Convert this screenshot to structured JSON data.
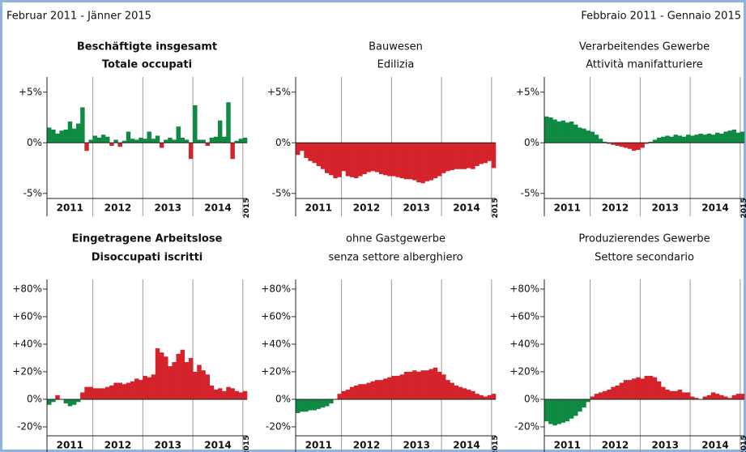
{
  "header": {
    "left": "Februar 2011 - Jänner 2015",
    "right": "Febbraio 2011 - Gennaio 2015"
  },
  "chart_data": [
    {
      "type": "bar",
      "title": [
        "Beschäftigte insgesamt",
        "Totale occupati"
      ],
      "title_bold": true,
      "groups": [
        "2011",
        "2012",
        "2013",
        "2014",
        "2015"
      ],
      "pos_color": "#0e8a43",
      "neg_color": "#d4232b",
      "ylim": [
        -5.5,
        6.5
      ],
      "yticks": [
        {
          "value": 5,
          "label": "+5%"
        },
        {
          "value": 0,
          "label": "0%"
        },
        {
          "value": -5,
          "label": "-5%"
        }
      ],
      "values": [
        1.5,
        1.3,
        0.9,
        1.2,
        1.3,
        2.1,
        1.4,
        1.9,
        3.5,
        -0.8,
        0.3,
        0.7,
        0.5,
        0.8,
        0.6,
        -0.3,
        0.3,
        -0.4,
        0.2,
        1.1,
        0.4,
        0.3,
        0.5,
        0.4,
        1.1,
        0.4,
        0.7,
        -0.5,
        0.3,
        0.5,
        0.3,
        1.6,
        0.5,
        0.3,
        -1.6,
        3.7,
        0.3,
        0.3,
        -0.3,
        0.5,
        0.6,
        2.2,
        0.6,
        4.0,
        -1.6,
        0.2,
        0.4,
        0.5
      ]
    },
    {
      "type": "bar",
      "title": [
        "Bauwesen",
        "Edilizia"
      ],
      "title_bold": false,
      "groups": [
        "2011",
        "2012",
        "2013",
        "2014",
        "2015"
      ],
      "pos_color": "#0e8a43",
      "neg_color": "#d4232b",
      "ylim": [
        -5.5,
        6.5
      ],
      "yticks": [
        {
          "value": 5,
          "label": "+5%"
        },
        {
          "value": 0,
          "label": "0%"
        },
        {
          "value": -5,
          "label": "-5%"
        }
      ],
      "values": [
        -1.2,
        -0.8,
        -1.5,
        -1.8,
        -2.0,
        -2.3,
        -2.6,
        -3.0,
        -3.2,
        -3.5,
        -3.4,
        -2.8,
        -3.3,
        -3.4,
        -3.5,
        -3.3,
        -3.1,
        -2.9,
        -2.8,
        -2.9,
        -3.1,
        -3.2,
        -3.3,
        -3.3,
        -3.4,
        -3.5,
        -3.6,
        -3.6,
        -3.7,
        -3.9,
        -4.0,
        -3.8,
        -3.7,
        -3.5,
        -3.3,
        -3.0,
        -2.8,
        -2.7,
        -2.6,
        -2.6,
        -2.6,
        -2.5,
        -2.6,
        -2.3,
        -2.1,
        -2.0,
        -1.8,
        -2.5
      ]
    },
    {
      "type": "bar",
      "title": [
        "Verarbeitendes Gewerbe",
        "Attività manifatturiere"
      ],
      "title_bold": false,
      "groups": [
        "2011",
        "2012",
        "2013",
        "2014",
        "2015"
      ],
      "pos_color": "#0e8a43",
      "neg_color": "#d4232b",
      "ylim": [
        -5.5,
        6.5
      ],
      "yticks": [
        {
          "value": 5,
          "label": "+5%"
        },
        {
          "value": 0,
          "label": "0%"
        },
        {
          "value": -5,
          "label": "-5%"
        }
      ],
      "values": [
        2.6,
        2.5,
        2.3,
        2.1,
        2.2,
        2.0,
        2.1,
        1.8,
        1.5,
        1.4,
        1.2,
        1.1,
        0.8,
        0.4,
        0.1,
        -0.1,
        -0.2,
        -0.3,
        -0.4,
        -0.5,
        -0.6,
        -0.8,
        -0.7,
        -0.5,
        -0.1,
        0.1,
        0.3,
        0.5,
        0.6,
        0.7,
        0.6,
        0.8,
        0.7,
        0.6,
        0.8,
        0.7,
        0.8,
        0.9,
        0.8,
        0.9,
        0.8,
        1.0,
        0.9,
        1.1,
        1.2,
        1.3,
        1.0,
        1.1
      ]
    },
    {
      "type": "bar",
      "title": [
        "Eingetragene Arbeitslose",
        "Disoccupati iscritti"
      ],
      "title_bold": true,
      "groups": [
        "2011",
        "2012",
        "2013",
        "2014",
        "2015"
      ],
      "pos_color": "#d4232b",
      "neg_color": "#0e8a43",
      "ylim": [
        -26.5,
        87
      ],
      "yticks": [
        {
          "value": 80,
          "label": "+80%"
        },
        {
          "value": 60,
          "label": "+60%"
        },
        {
          "value": 40,
          "label": "+40%"
        },
        {
          "value": 20,
          "label": "+20%"
        },
        {
          "value": 0,
          "label": "0%"
        },
        {
          "value": -20,
          "label": "-20%"
        }
      ],
      "values": [
        -4,
        -2,
        3,
        0,
        -3,
        -5,
        -4,
        -2,
        5,
        9,
        9,
        8,
        8,
        8,
        9,
        10,
        12,
        12,
        11,
        12,
        13,
        15,
        14,
        17,
        16,
        18,
        37,
        34,
        31,
        24,
        27,
        33,
        36,
        27,
        30,
        20,
        25,
        21,
        18,
        10,
        7,
        8,
        6,
        9,
        8,
        6,
        5,
        6
      ]
    },
    {
      "type": "bar",
      "title": [
        "ohne Gastgewerbe",
        "senza settore alberghiero"
      ],
      "title_bold": false,
      "groups": [
        "2011",
        "2012",
        "2013",
        "2014",
        "2015"
      ],
      "pos_color": "#d4232b",
      "neg_color": "#0e8a43",
      "ylim": [
        -26.5,
        87
      ],
      "yticks": [
        {
          "value": 80,
          "label": "+80%"
        },
        {
          "value": 60,
          "label": "+60%"
        },
        {
          "value": 40,
          "label": "+40%"
        },
        {
          "value": 20,
          "label": "+20%"
        },
        {
          "value": 0,
          "label": "0%"
        },
        {
          "value": -20,
          "label": "-20%"
        }
      ],
      "values": [
        -10,
        -9,
        -9,
        -8,
        -8,
        -7,
        -6,
        -5,
        -3,
        0,
        4,
        6,
        7,
        9,
        10,
        11,
        11,
        12,
        13,
        14,
        14,
        15,
        16,
        17,
        17,
        18,
        20,
        20,
        21,
        20,
        21,
        21,
        22,
        23,
        20,
        18,
        14,
        12,
        10,
        9,
        8,
        7,
        6,
        4,
        3,
        2,
        3,
        4
      ]
    },
    {
      "type": "bar",
      "title": [
        "Produzierendes Gewerbe",
        "Settore secondario"
      ],
      "title_bold": false,
      "groups": [
        "2011",
        "2012",
        "2013",
        "2014",
        "2015"
      ],
      "pos_color": "#d4232b",
      "neg_color": "#0e8a43",
      "ylim": [
        -26.5,
        87
      ],
      "yticks": [
        {
          "value": 80,
          "label": "+80%"
        },
        {
          "value": 60,
          "label": "+60%"
        },
        {
          "value": 40,
          "label": "+40%"
        },
        {
          "value": 20,
          "label": "+20%"
        },
        {
          "value": 0,
          "label": "0%"
        },
        {
          "value": -20,
          "label": "-20%"
        }
      ],
      "values": [
        -16,
        -18,
        -19,
        -18,
        -17,
        -16,
        -14,
        -12,
        -9,
        -6,
        -2,
        2,
        4,
        5,
        6,
        7,
        9,
        10,
        12,
        14,
        14,
        15,
        16,
        15,
        17,
        17,
        16,
        13,
        9,
        7,
        6,
        6,
        7,
        5,
        5,
        2,
        1,
        0,
        2,
        3,
        5,
        4,
        3,
        2,
        1,
        3,
        4,
        4
      ]
    }
  ]
}
